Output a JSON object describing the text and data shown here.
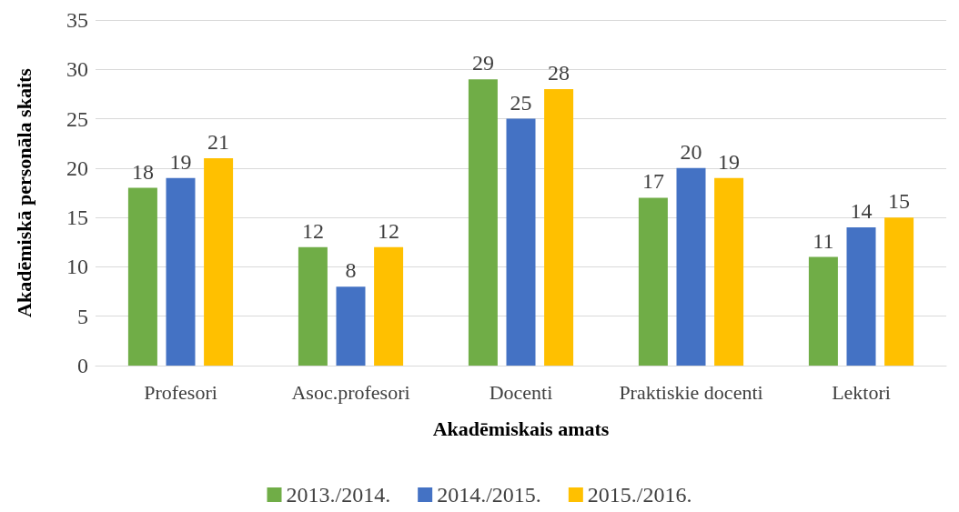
{
  "chart_data": {
    "type": "bar",
    "xlabel": "Akadēmiskais amats",
    "ylabel": "Akadēmiskā personāla skaits",
    "categories": [
      "Profesori",
      "Asoc.profesori",
      "Docenti",
      "Praktiskie docenti",
      "Lektori"
    ],
    "series": [
      {
        "name": "2013./2014.",
        "color": "#70ad47",
        "values": [
          18,
          12,
          29,
          17,
          11
        ]
      },
      {
        "name": "2014./2015.",
        "color": "#4472c4",
        "values": [
          19,
          8,
          25,
          20,
          14
        ]
      },
      {
        "name": "2015./2016.",
        "color": "#ffc000",
        "values": [
          21,
          12,
          28,
          19,
          15
        ]
      }
    ],
    "ylim": [
      0,
      35
    ],
    "yticks": [
      0,
      5,
      10,
      15,
      20,
      25,
      30,
      35
    ],
    "grid": "y",
    "legend": "bottom",
    "data_labels": true
  }
}
